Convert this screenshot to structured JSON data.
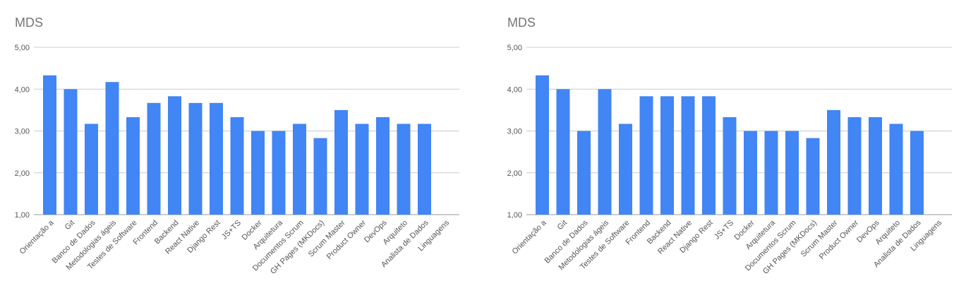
{
  "chart_data": [
    {
      "type": "bar",
      "title": "MDS",
      "ylim": [
        1,
        5
      ],
      "yticks": [
        "1,00",
        "2,00",
        "3,00",
        "4,00",
        "5,00"
      ],
      "grid": true,
      "bar_color": "#4285f4",
      "categories": [
        "Orientação a",
        "Git",
        "Banco de Dados",
        "Metodologias ágeis",
        "Testes de Software",
        "Frontend",
        "Backend",
        "React Native",
        "Django Rest",
        "JS+TS",
        "Docker",
        "Arquitetura",
        "Documentos Scrum",
        "GH Pages (MKDocs)",
        "Scrum Master",
        "Product Owner",
        "DevOps",
        "Arquiteto",
        "Analista de Dados",
        "Linguagens"
      ],
      "values": [
        4.33,
        4.0,
        3.17,
        4.17,
        3.33,
        3.67,
        3.83,
        3.67,
        3.67,
        3.33,
        3.0,
        3.0,
        3.17,
        2.83,
        3.5,
        3.17,
        3.33,
        3.17,
        3.17,
        null
      ]
    },
    {
      "type": "bar",
      "title": "MDS",
      "ylim": [
        1,
        5
      ],
      "yticks": [
        "1,00",
        "2,00",
        "3,00",
        "4,00",
        "5,00"
      ],
      "grid": true,
      "bar_color": "#4285f4",
      "categories": [
        "Orientação a",
        "Git",
        "Banco de Dados",
        "Metodologias ágeis",
        "Testes de Software",
        "Frontend",
        "Backend",
        "React Native",
        "Django Rest",
        "JS+TS",
        "Docker",
        "Arquitetura",
        "Documentos Scrum",
        "GH Pages (MKDocs)",
        "Scrum Master",
        "Product Owner",
        "DevOps",
        "Arquiteto",
        "Analista de Dados",
        "Linguagens"
      ],
      "values": [
        4.33,
        4.0,
        3.0,
        4.0,
        3.17,
        3.83,
        3.83,
        3.83,
        3.83,
        3.33,
        3.0,
        3.0,
        3.0,
        2.83,
        3.5,
        3.33,
        3.33,
        3.17,
        3.0,
        null
      ]
    }
  ]
}
